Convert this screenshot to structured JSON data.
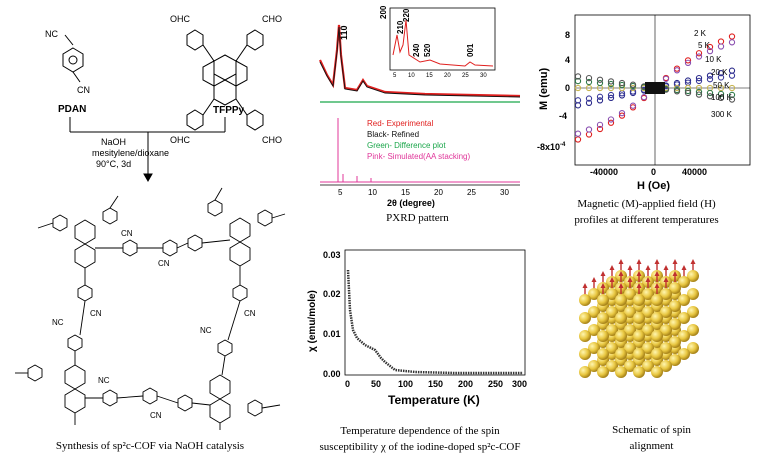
{
  "synthesis": {
    "monomer_a": "PDAN",
    "monomer_b": "TFPPy",
    "group_cn": "NC",
    "group_cn_b": "CN",
    "group_cho": "OHC",
    "group_cho_b": "CHO",
    "conditions": [
      "NaOH",
      "mesitylene/dioxane",
      "90°C, 3d"
    ],
    "caption": "Synthesis of sp²c-COF via NaOH catalysis"
  },
  "pxrd": {
    "caption": "PXRD pattern",
    "xlabel": "2θ (degree)",
    "peaks": [
      "110",
      "200",
      "210",
      "220",
      "240",
      "520",
      "001"
    ],
    "legend": [
      "Red- Experimental",
      "Black- Refined",
      "Green- Difference plot",
      "Pink- Simulated(AA stacking)"
    ],
    "xticks": [
      "5",
      "10",
      "15",
      "20",
      "25",
      "30"
    ],
    "inset_xticks": [
      "5",
      "10",
      "15",
      "20",
      "25",
      "30"
    ],
    "colors": {
      "experimental": "#e0201f",
      "refined": "#111111",
      "difference": "#1aa64a",
      "simulated": "#e0379a"
    }
  },
  "magnetic": {
    "caption": [
      "Magnetic (M)-applied field (H)",
      "profiles at different temperatures"
    ],
    "xlabel": "H (Oe)",
    "ylabel": "M (emu)",
    "y_exp": "-8x10",
    "y_exp_sup": "-4",
    "yticks": [
      "8",
      "4",
      "0",
      "-4"
    ],
    "xticks": [
      "-40000",
      "0",
      "40000"
    ],
    "temperatures": [
      "2 K",
      "5 K",
      "10 K",
      "20 K",
      "50 K",
      "100 K",
      "300 K"
    ],
    "colors": [
      "#e0201f",
      "#8a4fb0",
      "#2a2a8a",
      "#3a3a9a",
      "#c7b552",
      "#2f7a4a",
      "#555555"
    ]
  },
  "susceptibility": {
    "caption": [
      "Temperature dependence of the spin",
      "susceptibility χ of the iodine-doped sp²c-COF"
    ],
    "xlabel": "Temperature (K)",
    "ylabel": "χ (emu/mole)",
    "yticks": [
      "0.03",
      "0.02",
      "0.01",
      "0.00"
    ],
    "xticks": [
      "0",
      "50",
      "100",
      "150",
      "200",
      "250",
      "300"
    ]
  },
  "spin": {
    "caption": [
      "Schematic of spin",
      "alignment"
    ]
  }
}
